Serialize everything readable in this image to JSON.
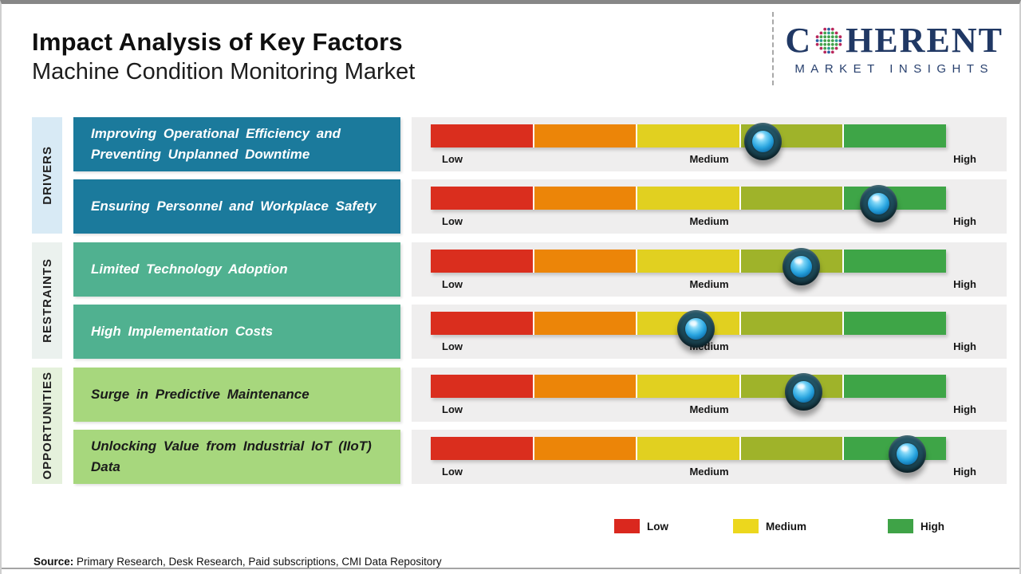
{
  "header": {
    "title": "Impact Analysis of Key Factors",
    "subtitle": "Machine Condition Monitoring Market",
    "logo": {
      "brand_start": "C",
      "brand_end": "HERENT",
      "tagline": "MARKET INSIGHTS",
      "brand_color": "#203864"
    }
  },
  "scale": {
    "low": "Low",
    "medium": "Medium",
    "high": "High"
  },
  "bar_segments": [
    "#da2e1e",
    "#ec8508",
    "#e1d020",
    "#9fb32a",
    "#3ea547"
  ],
  "groups": [
    {
      "label": "DRIVERS",
      "label_bg": "#d8eaf5",
      "box_bg": "#1b7a9c",
      "box_text": "#ffffff",
      "rows": [
        {
          "factor": "Improving Operational Efficiency and Preventing Unplanned Downtime",
          "knob_pct": 64.5
        },
        {
          "factor": "Ensuring Personnel and Workplace Safety",
          "knob_pct": 87
        }
      ]
    },
    {
      "label": "RESTRAINTS",
      "label_bg": "#ebf1ee",
      "box_bg": "#50b190",
      "box_text": "#ffffff",
      "rows": [
        {
          "factor": "Limited Technology Adoption",
          "knob_pct": 72
        },
        {
          "factor": "High Implementation Costs",
          "knob_pct": 51.5
        }
      ]
    },
    {
      "label": "OPPORTUNITIES",
      "label_bg": "#e5f1dc",
      "box_bg": "#a7d77d",
      "box_text": "#1b1b1b",
      "rows": [
        {
          "factor": "Surge in Predictive Maintenance",
          "knob_pct": 72.5
        },
        {
          "factor": "Unlocking Value from Industrial IoT (IIoT) Data",
          "knob_pct": 92.5
        }
      ]
    }
  ],
  "legend": [
    {
      "label": "Low",
      "color": "#da281e"
    },
    {
      "label": "Medium",
      "color": "#ecd71d"
    },
    {
      "label": "High",
      "color": "#3fa347"
    }
  ],
  "source": {
    "prefix": "Source:",
    "text": " Primary Research, Desk Research, Paid subscriptions, CMI Data Repository"
  },
  "chart_data": {
    "type": "scatter",
    "title": "Impact Analysis of Key Factors",
    "subtitle": "Machine Condition Monitoring Market",
    "x_axis": {
      "labels": [
        "Low",
        "Medium",
        "High"
      ],
      "range_pct": [
        0,
        100
      ]
    },
    "points": [
      {
        "group": "DRIVERS",
        "factor": "Improving Operational Efficiency and Preventing Unplanned Downtime",
        "impact_pct": 64.5,
        "impact_level": "Medium-High"
      },
      {
        "group": "DRIVERS",
        "factor": "Ensuring Personnel and Workplace Safety",
        "impact_pct": 87,
        "impact_level": "High"
      },
      {
        "group": "RESTRAINTS",
        "factor": "Limited Technology Adoption",
        "impact_pct": 72,
        "impact_level": "Medium-High"
      },
      {
        "group": "RESTRAINTS",
        "factor": "High Implementation Costs",
        "impact_pct": 51.5,
        "impact_level": "Medium"
      },
      {
        "group": "OPPORTUNITIES",
        "factor": "Surge in Predictive Maintenance",
        "impact_pct": 72.5,
        "impact_level": "Medium-High"
      },
      {
        "group": "OPPORTUNITIES",
        "factor": "Unlocking Value from Industrial IoT (IIoT) Data",
        "impact_pct": 92.5,
        "impact_level": "High"
      }
    ],
    "legend_position": "bottom"
  }
}
